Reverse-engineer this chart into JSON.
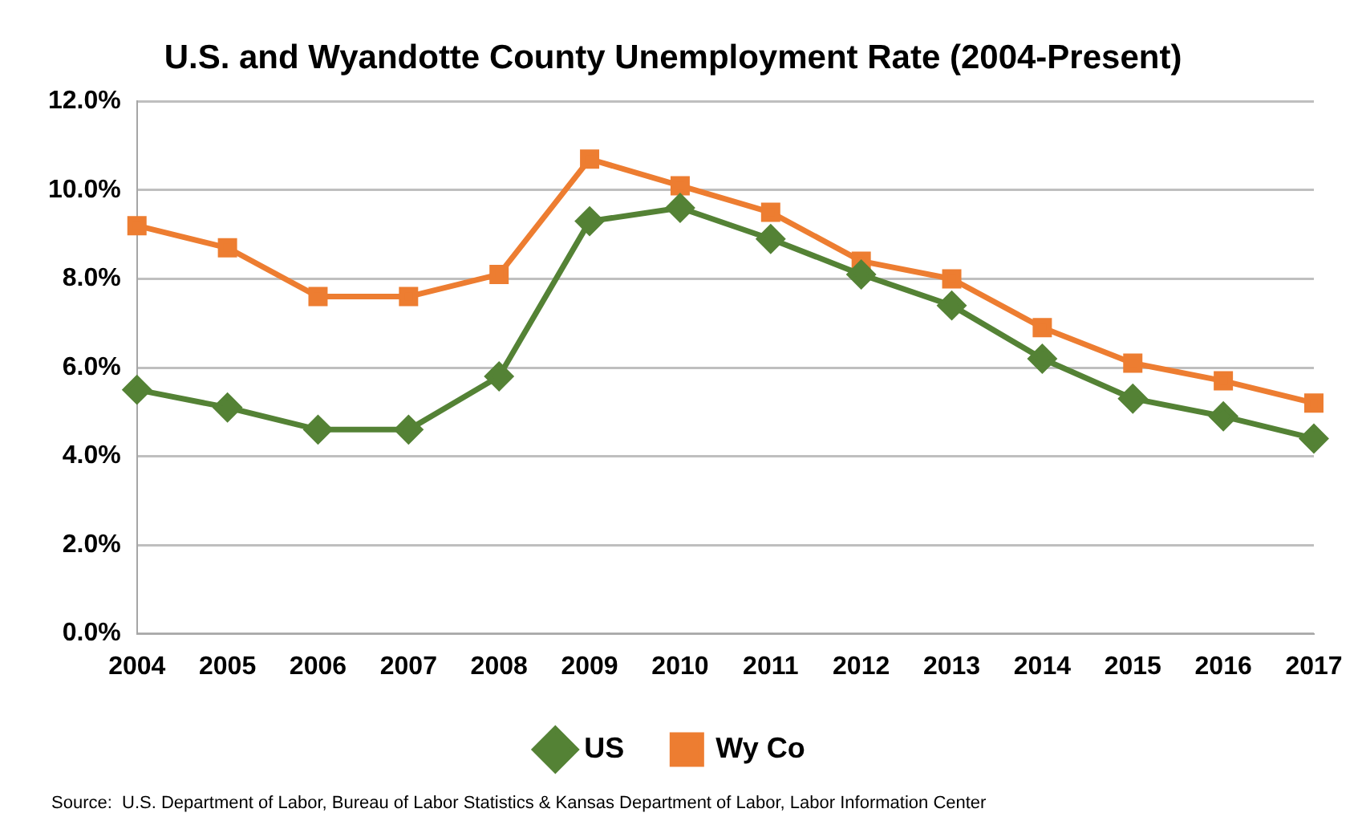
{
  "chart_data": {
    "type": "line",
    "title": "U.S. and Wyandotte County Unemployment Rate (2004-Present)",
    "categories": [
      "2004",
      "2005",
      "2006",
      "2007",
      "2008",
      "2009",
      "2010",
      "2011",
      "2012",
      "2013",
      "2014",
      "2015",
      "2016",
      "2017"
    ],
    "series": [
      {
        "name": "US",
        "color": "#548235",
        "marker": "diamond",
        "values": [
          5.5,
          5.1,
          4.6,
          4.6,
          5.8,
          9.3,
          9.6,
          8.9,
          8.1,
          7.4,
          6.2,
          5.3,
          4.9,
          4.4
        ]
      },
      {
        "name": "Wy Co",
        "color": "#ed7d31",
        "marker": "square",
        "values": [
          9.2,
          8.7,
          7.6,
          7.6,
          8.1,
          10.7,
          10.1,
          9.5,
          8.4,
          8.0,
          6.9,
          6.1,
          5.7,
          5.2
        ]
      }
    ],
    "ylim": [
      0,
      12
    ],
    "yticks": [
      {
        "value": 0,
        "label": "0.0%"
      },
      {
        "value": 2,
        "label": "2.0%"
      },
      {
        "value": 4,
        "label": "4.0%"
      },
      {
        "value": 6,
        "label": "6.0%"
      },
      {
        "value": 8,
        "label": "8.0%"
      },
      {
        "value": 10,
        "label": "10.0%"
      },
      {
        "value": 12,
        "label": "12.0%"
      }
    ],
    "grid": "y",
    "legend": "bottom",
    "line_style": "solid",
    "annotations": [
      "Source:  U.S. Department of Labor, Bureau of Labor Statistics & Kansas Department of Labor, Labor Information Center"
    ]
  }
}
